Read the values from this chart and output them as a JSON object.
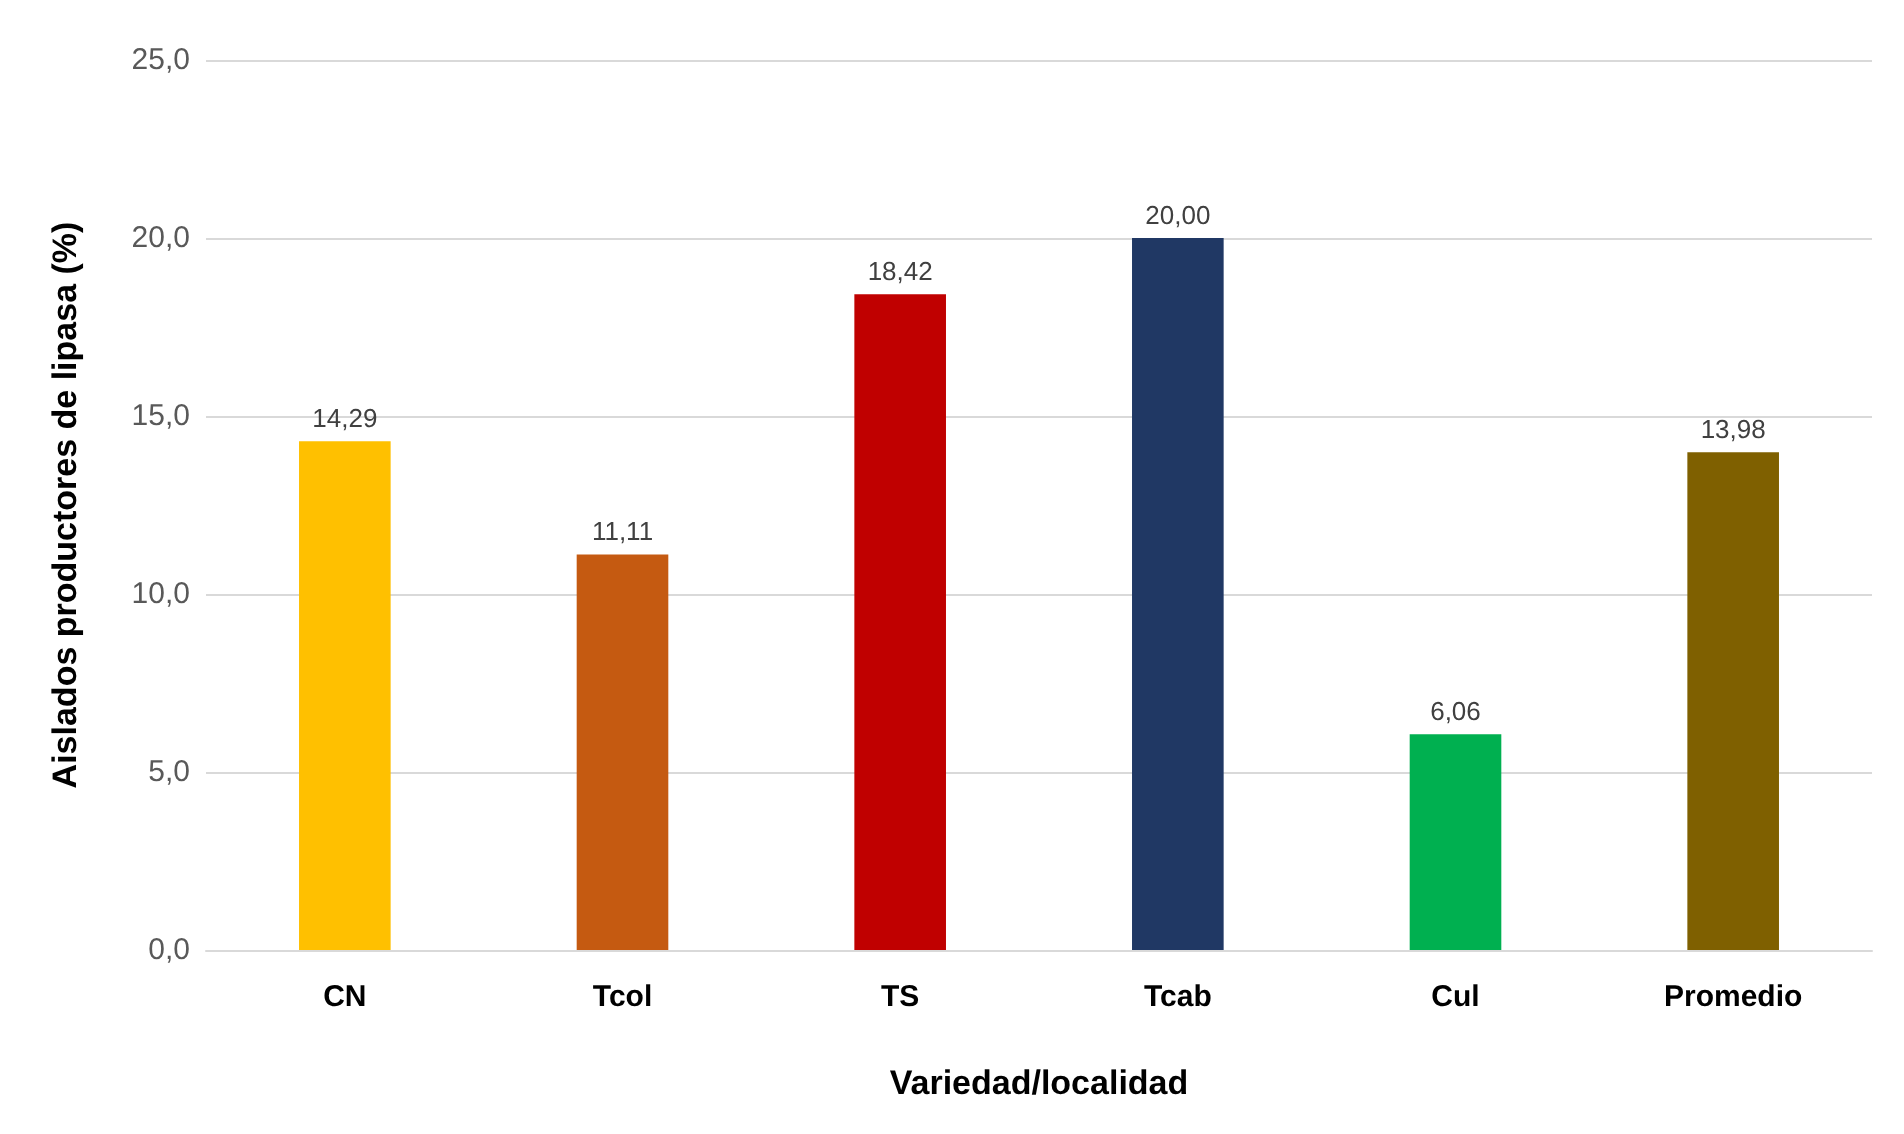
{
  "chart_data": {
    "type": "bar",
    "xlabel": "Variedad/localidad",
    "ylabel": "Aislados productores de lipasa (%)",
    "categories": [
      "CN",
      "Tcol",
      "TS",
      "Tcab",
      "Cul",
      "Promedio"
    ],
    "values": [
      14.29,
      11.11,
      18.42,
      20.0,
      6.06,
      13.98
    ],
    "colors": [
      "#ffc000",
      "#c55a11",
      "#c00000",
      "#203864",
      "#00b050",
      "#7f6000"
    ],
    "value_labels": [
      "14,29",
      "11,11",
      "18,42",
      "20,00",
      "6,06",
      "13,98"
    ],
    "ylim": [
      0,
      25
    ],
    "yticks": [
      {
        "value": 0,
        "label": "0,0"
      },
      {
        "value": 5,
        "label": "5,0"
      },
      {
        "value": 10,
        "label": "10,0"
      },
      {
        "value": 15,
        "label": "15,0"
      },
      {
        "value": 20,
        "label": "20,0"
      },
      {
        "value": 25,
        "label": "25,0"
      }
    ],
    "grid": "y"
  }
}
